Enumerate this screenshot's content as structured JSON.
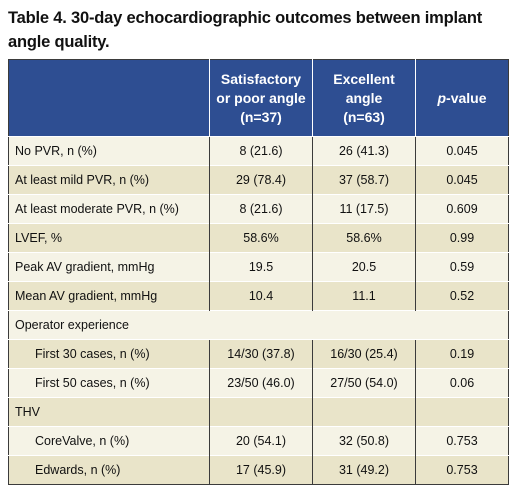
{
  "caption": {
    "line1": "Table 4. 30-day echocardiographic outcomes between implant",
    "line2": "angle quality."
  },
  "header": {
    "col1": "",
    "col2": [
      "Satisfactory",
      "or poor angle",
      "(n=37)"
    ],
    "col3": [
      "Excellent",
      "angle",
      "(n=63)"
    ],
    "col4_italic": "p",
    "col4_rest": "-value"
  },
  "rows": [
    {
      "label": "No PVR, n (%)",
      "a": "8 (21.6)",
      "b": "26 (41.3)",
      "p": "0.045"
    },
    {
      "label": "At least mild PVR, n (%)",
      "a": "29 (78.4)",
      "b": "37 (58.7)",
      "p": "0.045"
    },
    {
      "label": "At least moderate PVR, n (%)",
      "a": "8 (21.6)",
      "b": "11 (17.5)",
      "p": "0.609"
    },
    {
      "label": "LVEF,  %",
      "a": "58.6%",
      "b": "58.6%",
      "p": "0.99"
    },
    {
      "label": "Peak AV gradient, mmHg",
      "a": "19.5",
      "b": "20.5",
      "p": "0.59"
    },
    {
      "label": "Mean AV gradient, mmHg",
      "a": "10.4",
      "b": "11.1",
      "p": "0.52"
    },
    {
      "label": "Operator experience",
      "a": "",
      "b": "",
      "p": ""
    },
    {
      "label": "First 30 cases, n (%)",
      "a": "14/30 (37.8)",
      "b": "16/30 (25.4)",
      "p": "0.19"
    },
    {
      "label": "First 50 cases, n (%)",
      "a": "23/50 (46.0)",
      "b": "27/50 (54.0)",
      "p": "0.06"
    },
    {
      "label": "THV",
      "a": "",
      "b": "",
      "p": ""
    },
    {
      "label": "CoreValve, n (%)",
      "a": "20 (54.1)",
      "b": "32 (50.8)",
      "p": "0.753"
    },
    {
      "label": "Edwards, n (%)",
      "a": "17 (45.9)",
      "b": "31 (49.2)",
      "p": "0.753"
    }
  ],
  "colors": {
    "header_bg": "#2e4e92",
    "row_light": "#f5f3e6",
    "row_dark": "#e9e4c9"
  }
}
